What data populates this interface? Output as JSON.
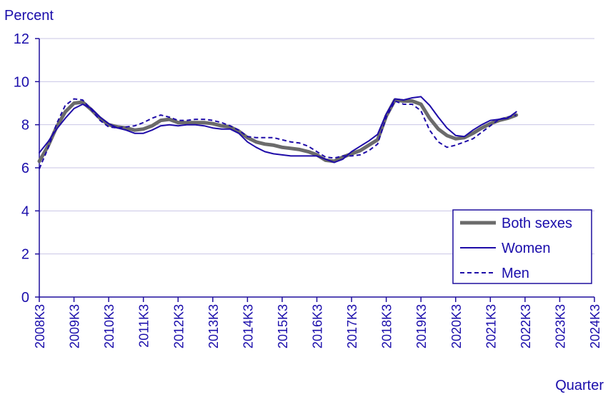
{
  "chart_data": {
    "type": "line",
    "title": "",
    "ylabel": "Percent",
    "xlabel": "Quarter",
    "ylim": [
      0,
      12
    ],
    "yticks": [
      0,
      2,
      4,
      6,
      8,
      10,
      12
    ],
    "grid": true,
    "legend_position": "bottom-right",
    "x_labels": [
      "2008K3",
      "2009K3",
      "2010K3",
      "2011K3",
      "2012K3",
      "2013K3",
      "2014K3",
      "2015K3",
      "2016K3",
      "2017K3",
      "2018K3",
      "2019K3",
      "2020K3",
      "2021K3",
      "2022K3",
      "2023K3",
      "2024K3"
    ],
    "x_start": "2008K3",
    "x_end": "2024K3",
    "colors": {
      "text": "#1a0dab",
      "axis": "#1f0f9e",
      "grid": "#c9c6e6",
      "both": "#6b6b6b",
      "women": "#1e0ba8",
      "men": "#1e0ba8"
    },
    "series": [
      {
        "name": "Both sexes",
        "style": "thick-gray",
        "points": [
          [
            "2008K3",
            6.3
          ],
          [
            "2008K4",
            7.0
          ],
          [
            "2009K1",
            7.9
          ],
          [
            "2009K2",
            8.6
          ],
          [
            "2009K3",
            9.0
          ],
          [
            "2009K4",
            9.05
          ],
          [
            "2010K1",
            8.7
          ],
          [
            "2010K2",
            8.3
          ],
          [
            "2010K3",
            8.0
          ],
          [
            "2010K4",
            7.9
          ],
          [
            "2011K1",
            7.85
          ],
          [
            "2011K2",
            7.75
          ],
          [
            "2011K3",
            7.8
          ],
          [
            "2011K4",
            7.95
          ],
          [
            "2012K1",
            8.2
          ],
          [
            "2012K2",
            8.25
          ],
          [
            "2012K3",
            8.1
          ],
          [
            "2012K4",
            8.1
          ],
          [
            "2013K1",
            8.1
          ],
          [
            "2013K2",
            8.1
          ],
          [
            "2013K3",
            8.05
          ],
          [
            "2013K4",
            7.95
          ],
          [
            "2014K1",
            7.9
          ],
          [
            "2014K2",
            7.7
          ],
          [
            "2014K3",
            7.4
          ],
          [
            "2014K4",
            7.2
          ],
          [
            "2015K1",
            7.1
          ],
          [
            "2015K2",
            7.05
          ],
          [
            "2015K3",
            6.95
          ],
          [
            "2015K4",
            6.9
          ],
          [
            "2016K1",
            6.85
          ],
          [
            "2016K2",
            6.75
          ],
          [
            "2016K3",
            6.6
          ],
          [
            "2016K4",
            6.35
          ],
          [
            "2017K1",
            6.3
          ],
          [
            "2017K2",
            6.5
          ],
          [
            "2017K3",
            6.65
          ],
          [
            "2017K4",
            6.8
          ],
          [
            "2018K1",
            7.05
          ],
          [
            "2018K2",
            7.3
          ],
          [
            "2018K3",
            8.4
          ],
          [
            "2018K4",
            9.15
          ],
          [
            "2019K1",
            9.1
          ],
          [
            "2019K2",
            9.1
          ],
          [
            "2019K3",
            8.95
          ],
          [
            "2019K4",
            8.3
          ],
          [
            "2020K1",
            7.8
          ],
          [
            "2020K2",
            7.5
          ],
          [
            "2020K3",
            7.35
          ],
          [
            "2020K4",
            7.4
          ],
          [
            "2021K1",
            7.6
          ],
          [
            "2021K2",
            7.85
          ],
          [
            "2021K3",
            8.05
          ],
          [
            "2021K4",
            8.2
          ],
          [
            "2022K1",
            8.3
          ],
          [
            "2022K2",
            8.45
          ]
        ]
      },
      {
        "name": "Women",
        "style": "solid",
        "points": [
          [
            "2008K3",
            6.7
          ],
          [
            "2008K4",
            7.2
          ],
          [
            "2009K1",
            7.8
          ],
          [
            "2009K2",
            8.3
          ],
          [
            "2009K3",
            8.75
          ],
          [
            "2009K4",
            8.95
          ],
          [
            "2010K1",
            8.75
          ],
          [
            "2010K2",
            8.35
          ],
          [
            "2010K3",
            8.05
          ],
          [
            "2010K4",
            7.85
          ],
          [
            "2011K1",
            7.75
          ],
          [
            "2011K2",
            7.6
          ],
          [
            "2011K3",
            7.6
          ],
          [
            "2011K4",
            7.75
          ],
          [
            "2012K1",
            7.95
          ],
          [
            "2012K2",
            8.0
          ],
          [
            "2012K3",
            7.95
          ],
          [
            "2012K4",
            8.0
          ],
          [
            "2013K1",
            8.0
          ],
          [
            "2013K2",
            7.95
          ],
          [
            "2013K3",
            7.85
          ],
          [
            "2013K4",
            7.8
          ],
          [
            "2014K1",
            7.8
          ],
          [
            "2014K2",
            7.6
          ],
          [
            "2014K3",
            7.2
          ],
          [
            "2014K4",
            6.95
          ],
          [
            "2015K1",
            6.75
          ],
          [
            "2015K2",
            6.65
          ],
          [
            "2015K3",
            6.6
          ],
          [
            "2015K4",
            6.55
          ],
          [
            "2016K1",
            6.55
          ],
          [
            "2016K2",
            6.55
          ],
          [
            "2016K3",
            6.55
          ],
          [
            "2016K4",
            6.4
          ],
          [
            "2017K1",
            6.25
          ],
          [
            "2017K2",
            6.4
          ],
          [
            "2017K3",
            6.75
          ],
          [
            "2017K4",
            7.0
          ],
          [
            "2018K1",
            7.25
          ],
          [
            "2018K2",
            7.55
          ],
          [
            "2018K3",
            8.5
          ],
          [
            "2018K4",
            9.2
          ],
          [
            "2019K1",
            9.15
          ],
          [
            "2019K2",
            9.25
          ],
          [
            "2019K3",
            9.3
          ],
          [
            "2019K4",
            8.9
          ],
          [
            "2020K1",
            8.35
          ],
          [
            "2020K2",
            7.85
          ],
          [
            "2020K3",
            7.5
          ],
          [
            "2020K4",
            7.45
          ],
          [
            "2021K1",
            7.75
          ],
          [
            "2021K2",
            8.0
          ],
          [
            "2021K3",
            8.2
          ],
          [
            "2021K4",
            8.25
          ],
          [
            "2022K1",
            8.3
          ],
          [
            "2022K2",
            8.6
          ]
        ]
      },
      {
        "name": "Men",
        "style": "dashed",
        "points": [
          [
            "2008K3",
            5.95
          ],
          [
            "2008K4",
            6.9
          ],
          [
            "2009K1",
            8.05
          ],
          [
            "2009K2",
            8.9
          ],
          [
            "2009K3",
            9.2
          ],
          [
            "2009K4",
            9.15
          ],
          [
            "2010K1",
            8.7
          ],
          [
            "2010K2",
            8.2
          ],
          [
            "2010K3",
            7.9
          ],
          [
            "2010K4",
            7.85
          ],
          [
            "2011K1",
            7.9
          ],
          [
            "2011K2",
            7.95
          ],
          [
            "2011K3",
            8.1
          ],
          [
            "2011K4",
            8.3
          ],
          [
            "2012K1",
            8.45
          ],
          [
            "2012K2",
            8.35
          ],
          [
            "2012K3",
            8.2
          ],
          [
            "2012K4",
            8.2
          ],
          [
            "2013K1",
            8.25
          ],
          [
            "2013K2",
            8.25
          ],
          [
            "2013K3",
            8.2
          ],
          [
            "2013K4",
            8.1
          ],
          [
            "2014K1",
            7.95
          ],
          [
            "2014K2",
            7.75
          ],
          [
            "2014K3",
            7.45
          ],
          [
            "2014K4",
            7.4
          ],
          [
            "2015K1",
            7.4
          ],
          [
            "2015K2",
            7.4
          ],
          [
            "2015K3",
            7.3
          ],
          [
            "2015K4",
            7.2
          ],
          [
            "2016K1",
            7.15
          ],
          [
            "2016K2",
            7.0
          ],
          [
            "2016K3",
            6.75
          ],
          [
            "2016K4",
            6.5
          ],
          [
            "2017K1",
            6.45
          ],
          [
            "2017K2",
            6.55
          ],
          [
            "2017K3",
            6.55
          ],
          [
            "2017K4",
            6.6
          ],
          [
            "2018K1",
            6.8
          ],
          [
            "2018K2",
            7.1
          ],
          [
            "2018K3",
            8.35
          ],
          [
            "2018K4",
            9.1
          ],
          [
            "2019K1",
            8.95
          ],
          [
            "2019K2",
            8.95
          ],
          [
            "2019K3",
            8.65
          ],
          [
            "2019K4",
            7.75
          ],
          [
            "2020K1",
            7.2
          ],
          [
            "2020K2",
            6.95
          ],
          [
            "2020K3",
            7.05
          ],
          [
            "2020K4",
            7.2
          ],
          [
            "2021K1",
            7.35
          ],
          [
            "2021K2",
            7.65
          ],
          [
            "2021K3",
            7.95
          ],
          [
            "2021K4",
            8.25
          ],
          [
            "2022K1",
            8.35
          ],
          [
            "2022K2",
            8.45
          ]
        ]
      }
    ]
  }
}
